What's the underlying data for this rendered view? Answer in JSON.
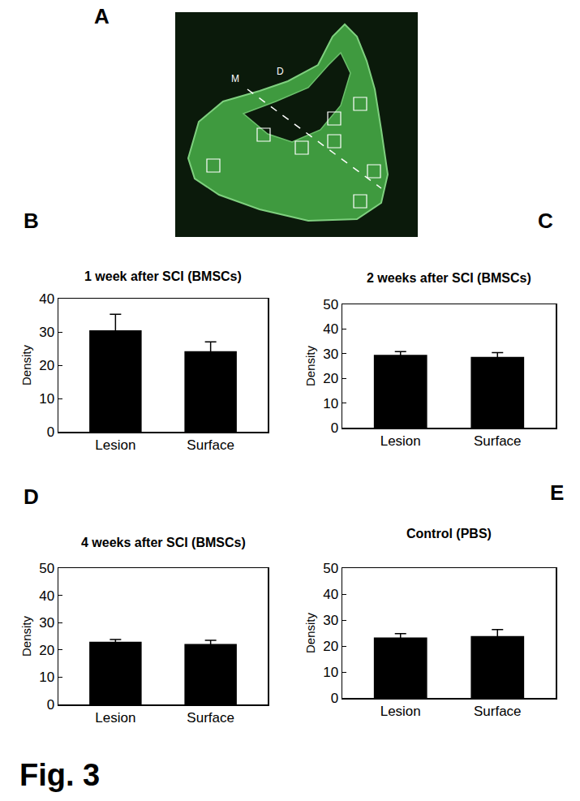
{
  "figure_label": "Fig. 3",
  "image_panel": {
    "label": "A",
    "annotations": [
      "M",
      "D"
    ]
  },
  "chart_data": [
    {
      "type": "bar",
      "title": "1 week after SCI (BMSCs)",
      "annotations": [
        "B"
      ],
      "y_label": "Density",
      "categories": [
        "Lesion",
        "Surface"
      ],
      "values": [
        30.5,
        24.2
      ],
      "errors": [
        4.8,
        2.8
      ],
      "color": "#000000",
      "ylim": [
        0,
        40
      ],
      "yticks": [
        0,
        10,
        20,
        30,
        40
      ]
    },
    {
      "type": "bar",
      "title": "2 weeks after SCI (BMSCs)",
      "annotations": [
        "C"
      ],
      "y_label": "Density",
      "categories": [
        "Lesion",
        "Surface"
      ],
      "values": [
        29.5,
        28.7
      ],
      "errors": [
        1.3,
        1.7
      ],
      "color": "#000000",
      "ylim": [
        0,
        50
      ],
      "yticks": [
        0,
        10,
        20,
        30,
        40,
        50
      ]
    },
    {
      "type": "bar",
      "title": "4 weeks after SCI (BMSCs)",
      "annotations": [
        "D"
      ],
      "y_label": "Density",
      "categories": [
        "Lesion",
        "Surface"
      ],
      "values": [
        23.0,
        22.2
      ],
      "errors": [
        0.8,
        1.3
      ],
      "color": "#000000",
      "ylim": [
        0,
        50
      ],
      "yticks": [
        0,
        10,
        20,
        30,
        40,
        50
      ]
    },
    {
      "type": "bar",
      "title": "Control (PBS)",
      "annotations": [
        "E"
      ],
      "y_label": "Density",
      "categories": [
        "Lesion",
        "Surface"
      ],
      "values": [
        23.3,
        23.8
      ],
      "errors": [
        1.5,
        2.5
      ],
      "color": "#000000",
      "ylim": [
        0,
        50
      ],
      "yticks": [
        0,
        10,
        20,
        30,
        40,
        50
      ]
    }
  ]
}
